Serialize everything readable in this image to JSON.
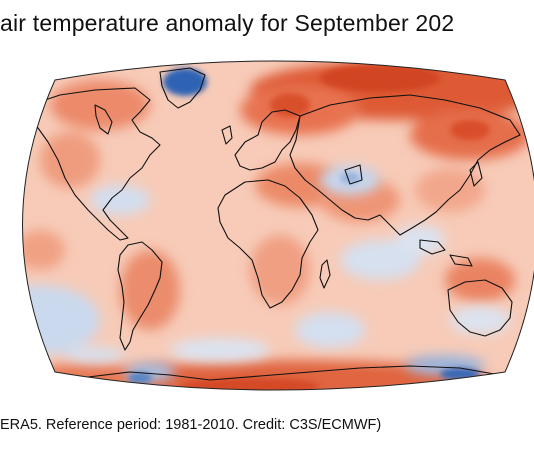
{
  "title": "air temperature anomaly for September 202",
  "caption": "ERA5.  Reference period: 1981-2010.  Credit: C3S/ECMWF)",
  "colors": {
    "warm_base": "#f6c8b4",
    "warm_strong": "#d94a2a",
    "warm_medium": "#ee8f6e",
    "cold_base": "#c9d9ee",
    "cold_strong": "#2e64b4",
    "coastline": "#111111"
  }
}
